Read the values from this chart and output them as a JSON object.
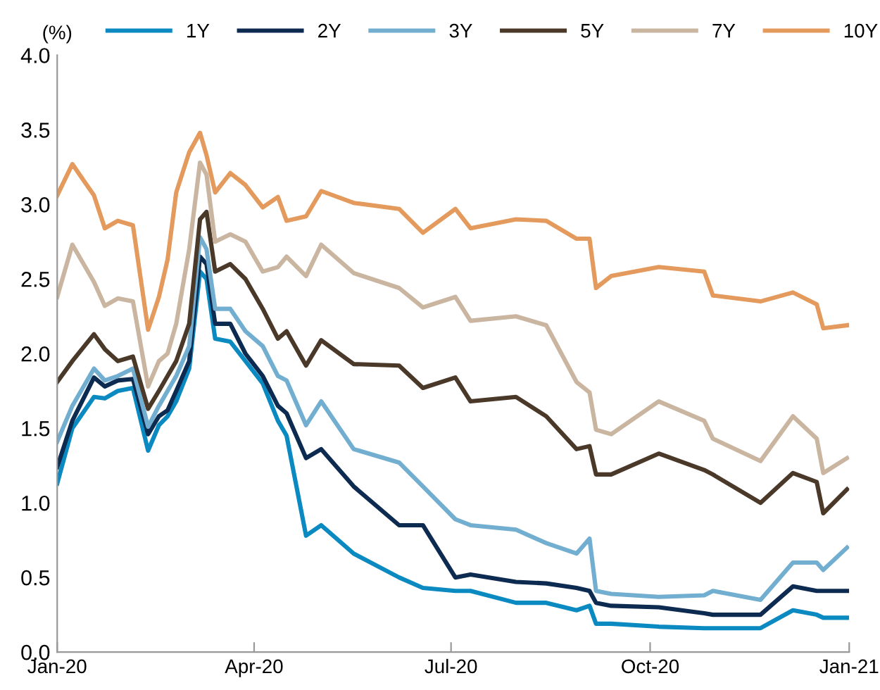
{
  "chart_data": {
    "type": "line",
    "ylabel": "(%)",
    "x": [
      "2020-01-01",
      "2020-01-08",
      "2020-01-18",
      "2020-01-23",
      "2020-01-29",
      "2020-02-05",
      "2020-02-12",
      "2020-02-17",
      "2020-02-21",
      "2020-02-25",
      "2020-03-02",
      "2020-03-07",
      "2020-03-10",
      "2020-03-14",
      "2020-03-21",
      "2020-03-28",
      "2020-04-05",
      "2020-04-12",
      "2020-04-16",
      "2020-04-25",
      "2020-05-02",
      "2020-05-17",
      "2020-06-07",
      "2020-06-18",
      "2020-07-03",
      "2020-07-10",
      "2020-07-31",
      "2020-08-14",
      "2020-08-28",
      "2020-09-03",
      "2020-09-06",
      "2020-09-13",
      "2020-10-05",
      "2020-10-26",
      "2020-10-30",
      "2020-11-21",
      "2020-12-06",
      "2020-12-17",
      "2020-12-20",
      "2020-12-31"
    ],
    "series": [
      {
        "name": "1Y",
        "color": "#0a8ac0",
        "values": [
          1.13,
          1.5,
          1.71,
          1.7,
          1.75,
          1.77,
          1.35,
          1.52,
          1.58,
          1.68,
          1.9,
          2.55,
          2.5,
          2.1,
          2.08,
          1.95,
          1.8,
          1.55,
          1.45,
          0.78,
          0.85,
          0.66,
          0.5,
          0.43,
          0.41,
          0.41,
          0.33,
          0.33,
          0.28,
          0.31,
          0.19,
          0.19,
          0.17,
          0.16,
          0.16,
          0.16,
          0.28,
          0.25,
          0.23,
          0.23
        ]
      },
      {
        "name": "2Y",
        "color": "#0d2a50",
        "values": [
          1.24,
          1.55,
          1.84,
          1.78,
          1.82,
          1.83,
          1.46,
          1.58,
          1.62,
          1.75,
          1.95,
          2.65,
          2.6,
          2.2,
          2.2,
          2.0,
          1.85,
          1.65,
          1.6,
          1.3,
          1.36,
          1.11,
          0.85,
          0.85,
          0.5,
          0.52,
          0.47,
          0.46,
          0.43,
          0.41,
          0.33,
          0.31,
          0.3,
          0.26,
          0.25,
          0.25,
          0.44,
          0.41,
          0.41,
          0.41
        ]
      },
      {
        "name": "3Y",
        "color": "#72aed0",
        "values": [
          1.41,
          1.65,
          1.9,
          1.82,
          1.85,
          1.9,
          1.51,
          1.65,
          1.75,
          1.85,
          2.05,
          2.78,
          2.7,
          2.3,
          2.3,
          2.15,
          2.05,
          1.85,
          1.82,
          1.52,
          1.68,
          1.36,
          1.27,
          1.11,
          0.89,
          0.85,
          0.82,
          0.73,
          0.66,
          0.76,
          0.41,
          0.39,
          0.37,
          0.38,
          0.41,
          0.35,
          0.6,
          0.6,
          0.55,
          0.7
        ]
      },
      {
        "name": "5Y",
        "color": "#4a3828",
        "values": [
          1.81,
          1.95,
          2.13,
          2.03,
          1.95,
          1.98,
          1.63,
          1.75,
          1.85,
          1.95,
          2.2,
          2.9,
          2.95,
          2.55,
          2.6,
          2.5,
          2.3,
          2.1,
          2.15,
          1.92,
          2.09,
          1.93,
          1.92,
          1.77,
          1.84,
          1.68,
          1.71,
          1.58,
          1.36,
          1.38,
          1.19,
          1.19,
          1.33,
          1.22,
          1.19,
          1.0,
          1.2,
          1.14,
          0.93,
          1.09
        ]
      },
      {
        "name": "7Y",
        "color": "#c9b5a0",
        "values": [
          2.38,
          2.73,
          2.48,
          2.32,
          2.37,
          2.35,
          1.78,
          1.95,
          2.0,
          2.2,
          2.7,
          3.28,
          3.2,
          2.75,
          2.8,
          2.75,
          2.55,
          2.58,
          2.65,
          2.52,
          2.73,
          2.54,
          2.44,
          2.31,
          2.38,
          2.22,
          2.25,
          2.19,
          1.81,
          1.74,
          1.49,
          1.46,
          1.68,
          1.55,
          1.43,
          1.28,
          1.58,
          1.43,
          1.2,
          1.3
        ]
      },
      {
        "name": "10Y",
        "color": "#e39a5c",
        "values": [
          3.06,
          3.27,
          3.06,
          2.84,
          2.89,
          2.86,
          2.16,
          2.38,
          2.63,
          3.08,
          3.35,
          3.48,
          3.33,
          3.08,
          3.21,
          3.13,
          2.98,
          3.05,
          2.89,
          2.92,
          3.09,
          3.01,
          2.97,
          2.81,
          2.97,
          2.84,
          2.9,
          2.89,
          2.77,
          2.77,
          2.44,
          2.52,
          2.58,
          2.55,
          2.39,
          2.35,
          2.41,
          2.33,
          2.17,
          2.19
        ]
      }
    ],
    "xlim": [
      "2020-01-01",
      "2021-01-01"
    ],
    "xticks": [
      {
        "value": "2020-01-01",
        "label": "Jan-20"
      },
      {
        "value": "2020-04-01",
        "label": "Apr-20"
      },
      {
        "value": "2020-07-01",
        "label": "Jul-20"
      },
      {
        "value": "2020-10-01",
        "label": "Oct-20"
      },
      {
        "value": "2021-01-01",
        "label": "Jan-21"
      }
    ],
    "ylim": [
      0,
      4
    ],
    "yticks": [
      {
        "value": 0,
        "label": "0.0"
      },
      {
        "value": 0.5,
        "label": "0.5"
      },
      {
        "value": 1,
        "label": "1.0"
      },
      {
        "value": 1.5,
        "label": "1.5"
      },
      {
        "value": 2,
        "label": "2.0"
      },
      {
        "value": 2.5,
        "label": "2.5"
      },
      {
        "value": 3,
        "label": "3.0"
      },
      {
        "value": 3.5,
        "label": "3.5"
      },
      {
        "value": 4,
        "label": "4.0"
      }
    ],
    "grid": false,
    "legend": "top",
    "marker": "none",
    "line_style": "solid"
  }
}
